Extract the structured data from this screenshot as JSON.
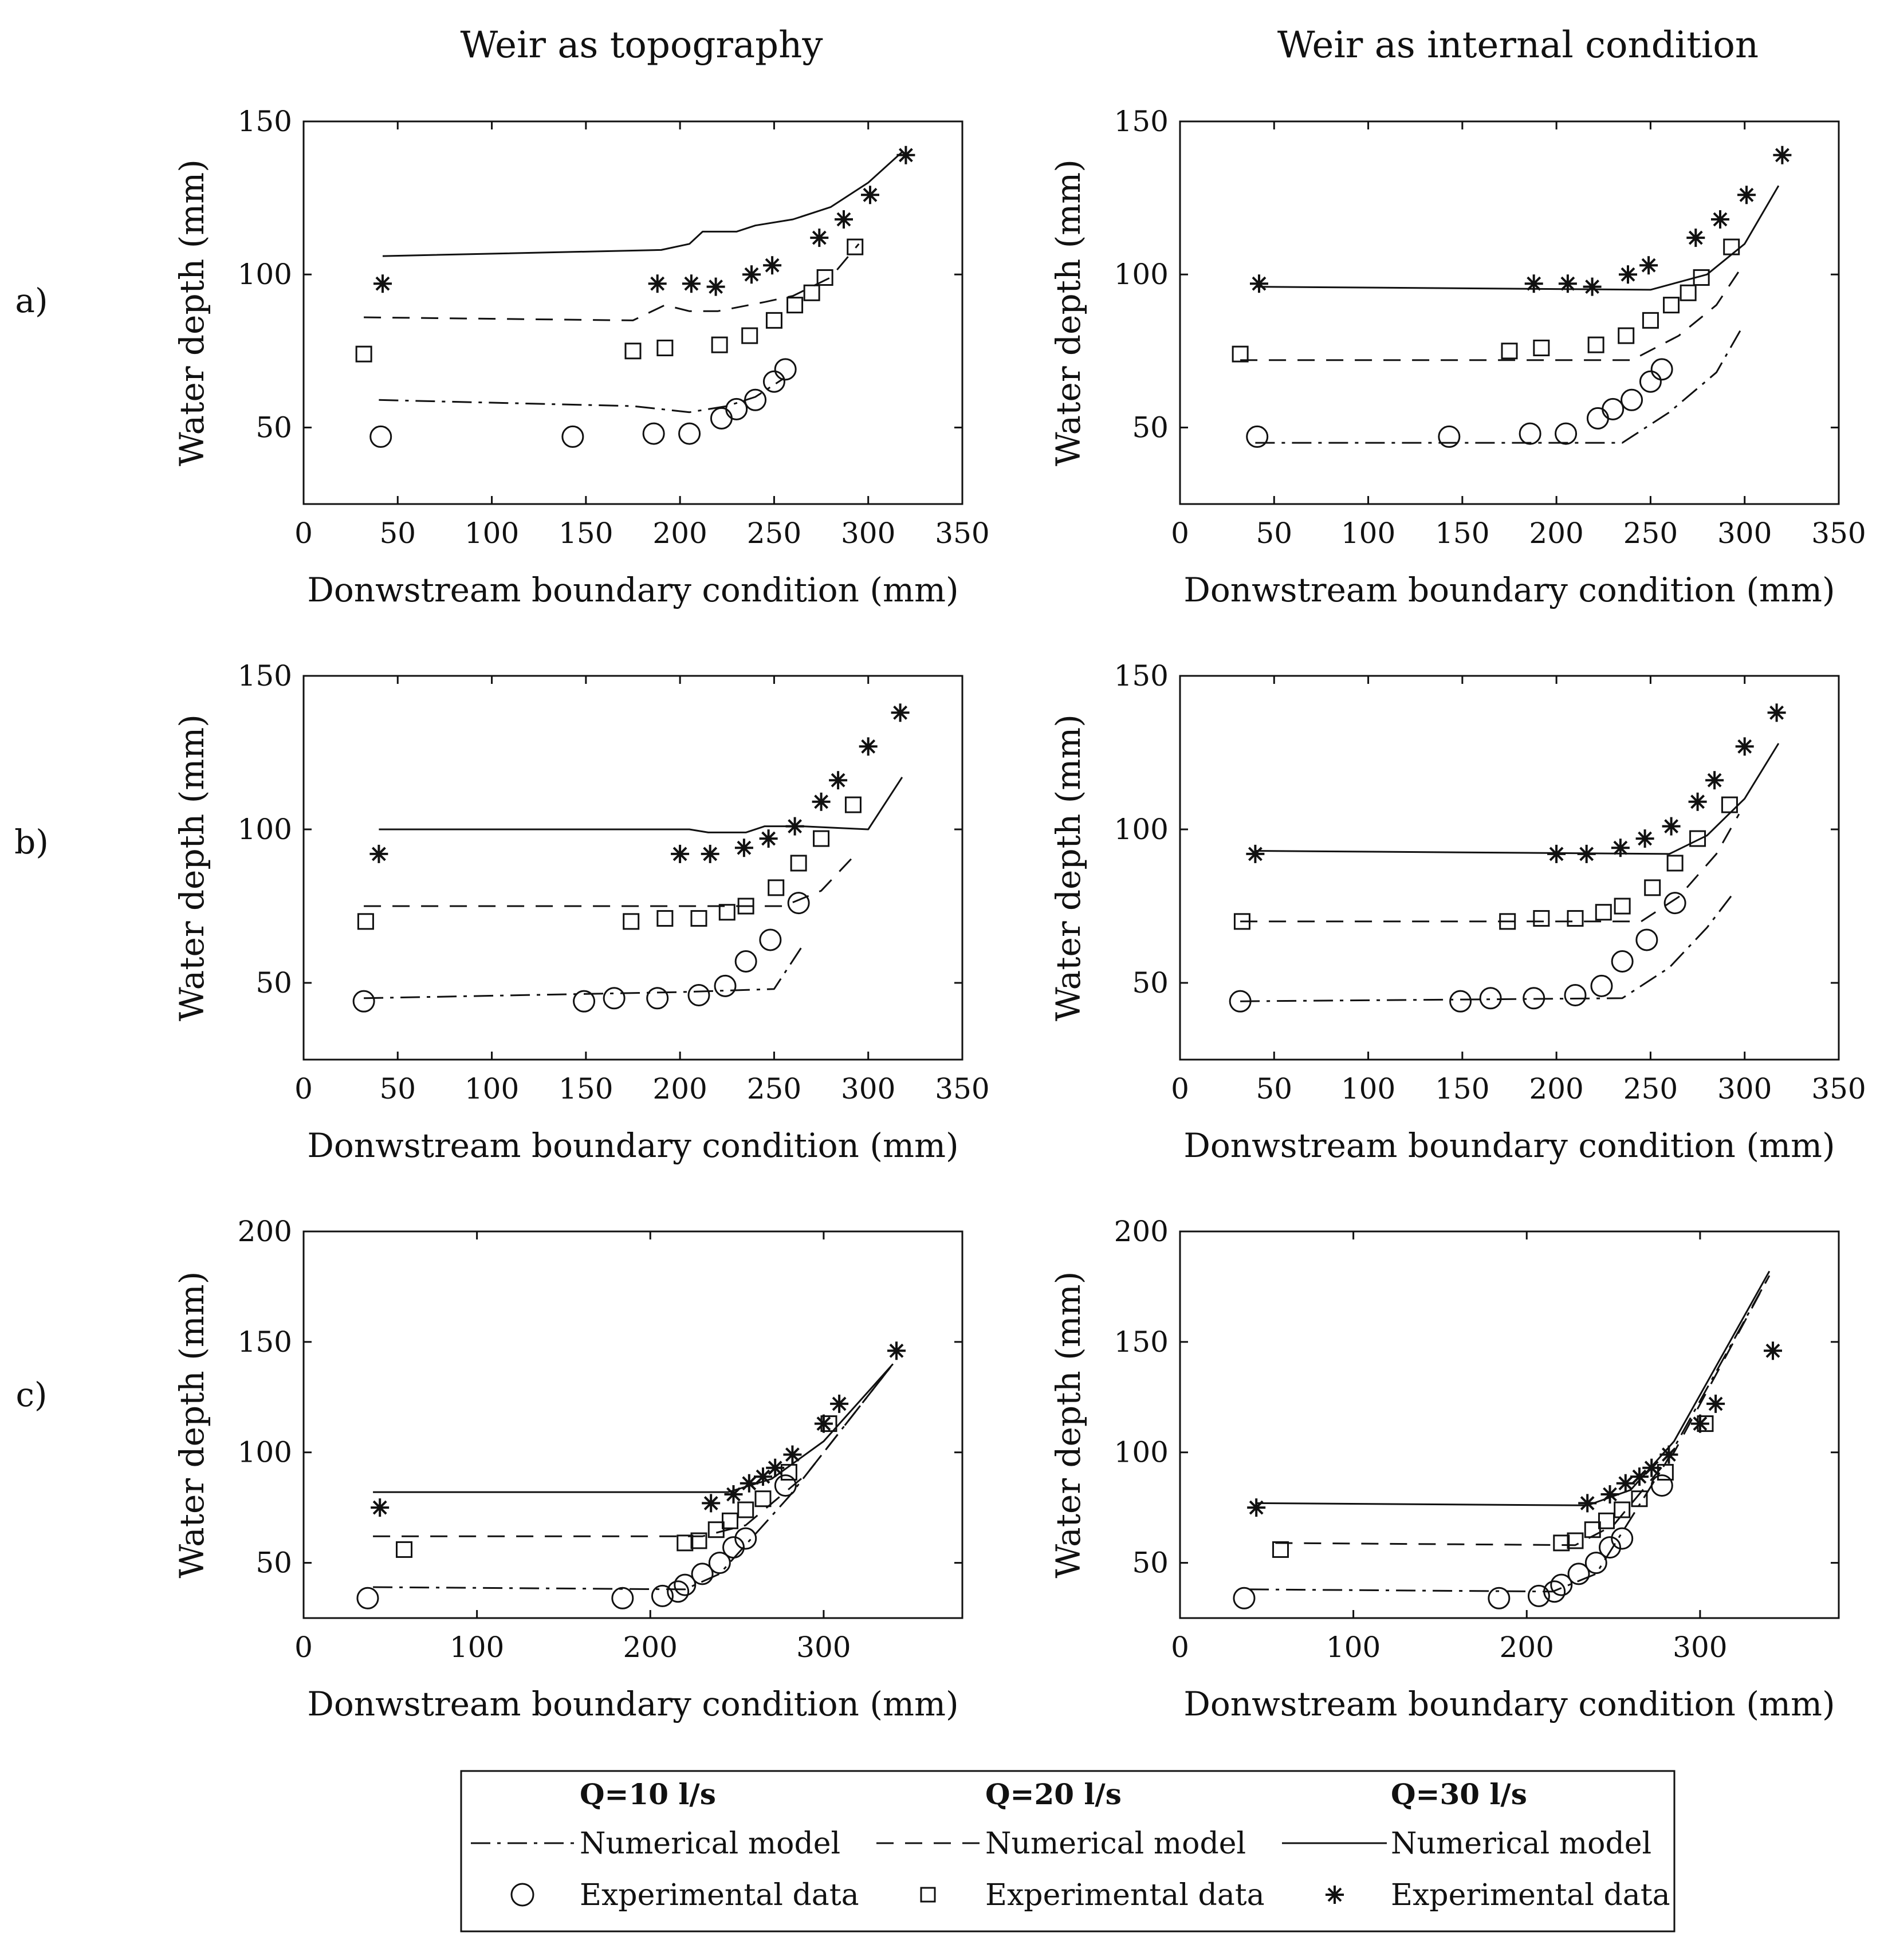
{
  "figure": {
    "column_titles": [
      "Weir as topography",
      "Weir as internal condition"
    ],
    "row_labels": [
      "a)",
      "b)",
      "c)"
    ]
  },
  "legend": {
    "q10_label": "Q=10 l/s",
    "q20_label": "Q=20 l/s",
    "q30_label": "Q=30 l/s",
    "model_label": "Numerical model",
    "data_label": "Experimental data"
  },
  "colors": {
    "ink": "#111111",
    "background": "#ffffff"
  },
  "chart_data": [
    {
      "id": "a-topo",
      "type": "line",
      "row": "a)",
      "column": "Weir as topography",
      "xlabel": "Donwstream boundary condition (mm)",
      "ylabel": "Water depth (mm)",
      "xlim": [
        0,
        350
      ],
      "ylim": [
        25,
        150
      ],
      "xticks": [
        0,
        50,
        100,
        150,
        200,
        250,
        300,
        350
      ],
      "yticks": [
        50,
        100,
        150
      ],
      "series": [
        {
          "name": "Q=10 l/s Numerical model",
          "kind": "line",
          "dash": "dashdot",
          "x": [
            40,
            175,
            205,
            225,
            240,
            255
          ],
          "y": [
            59,
            57,
            55,
            57,
            60,
            66
          ]
        },
        {
          "name": "Q=20 l/s Numerical model",
          "kind": "line",
          "dash": "dashed",
          "x": [
            32,
            175,
            192,
            205,
            220,
            245,
            260,
            280,
            295
          ],
          "y": [
            86,
            85,
            90,
            88,
            88,
            91,
            93,
            99,
            110
          ]
        },
        {
          "name": "Q=30 l/s Numerical model",
          "kind": "line",
          "dash": "solid",
          "x": [
            42,
            190,
            205,
            212,
            230,
            240,
            260,
            280,
            300,
            318
          ],
          "y": [
            106,
            108,
            110,
            114,
            114,
            116,
            118,
            122,
            130,
            140
          ]
        },
        {
          "name": "Q=10 l/s Experimental data",
          "kind": "marker",
          "marker": "circle",
          "x": [
            41,
            143,
            186,
            205,
            222,
            230,
            240,
            250,
            256
          ],
          "y": [
            47,
            47,
            48,
            48,
            53,
            56,
            59,
            65,
            69
          ]
        },
        {
          "name": "Q=20 l/s Experimental data",
          "kind": "marker",
          "marker": "square",
          "x": [
            32,
            175,
            192,
            221,
            237,
            250,
            261,
            270,
            277,
            293
          ],
          "y": [
            74,
            75,
            76,
            77,
            80,
            85,
            90,
            94,
            99,
            109
          ]
        },
        {
          "name": "Q=30 l/s Experimental data",
          "kind": "marker",
          "marker": "star",
          "x": [
            42,
            188,
            206,
            219,
            238,
            249,
            274,
            287,
            301,
            320
          ],
          "y": [
            97,
            97,
            97,
            96,
            100,
            103,
            112,
            118,
            126,
            139
          ]
        }
      ]
    },
    {
      "id": "a-internal",
      "type": "line",
      "row": "a)",
      "column": "Weir as internal condition",
      "xlabel": "Donwstream boundary condition (mm)",
      "ylabel": "Water depth (mm)",
      "xlim": [
        0,
        350
      ],
      "ylim": [
        25,
        150
      ],
      "xticks": [
        0,
        50,
        100,
        150,
        200,
        250,
        300,
        350
      ],
      "yticks": [
        50,
        100,
        150
      ],
      "series": [
        {
          "name": "Q=10 l/s Numerical model",
          "kind": "line",
          "dash": "dashdot",
          "x": [
            40,
            235,
            260,
            285,
            298
          ],
          "y": [
            45,
            45,
            55,
            68,
            82
          ]
        },
        {
          "name": "Q=20 l/s Numerical model",
          "kind": "line",
          "dash": "dashed",
          "x": [
            32,
            240,
            265,
            285,
            298
          ],
          "y": [
            72,
            72,
            80,
            90,
            102
          ]
        },
        {
          "name": "Q=30 l/s Numerical model",
          "kind": "line",
          "dash": "solid",
          "x": [
            40,
            250,
            280,
            300,
            318
          ],
          "y": [
            96,
            95,
            100,
            110,
            129
          ]
        },
        {
          "name": "Q=10 l/s Experimental data",
          "kind": "marker",
          "marker": "circle",
          "x": [
            41,
            143,
            186,
            205,
            222,
            230,
            240,
            250,
            256
          ],
          "y": [
            47,
            47,
            48,
            48,
            53,
            56,
            59,
            65,
            69
          ]
        },
        {
          "name": "Q=20 l/s Experimental data",
          "kind": "marker",
          "marker": "square",
          "x": [
            32,
            175,
            192,
            221,
            237,
            250,
            261,
            270,
            277,
            293
          ],
          "y": [
            74,
            75,
            76,
            77,
            80,
            85,
            90,
            94,
            99,
            109
          ]
        },
        {
          "name": "Q=30 l/s Experimental data",
          "kind": "marker",
          "marker": "star",
          "x": [
            42,
            188,
            206,
            219,
            238,
            249,
            274,
            287,
            301,
            320
          ],
          "y": [
            97,
            97,
            97,
            96,
            100,
            103,
            112,
            118,
            126,
            139
          ]
        }
      ]
    },
    {
      "id": "b-topo",
      "type": "line",
      "row": "b)",
      "column": "Weir as topography",
      "xlabel": "Donwstream boundary condition (mm)",
      "ylabel": "Water depth (mm)",
      "xlim": [
        0,
        350
      ],
      "ylim": [
        25,
        150
      ],
      "xticks": [
        0,
        50,
        100,
        150,
        200,
        250,
        300,
        350
      ],
      "yticks": [
        50,
        100,
        150
      ],
      "series": [
        {
          "name": "Q=10 l/s Numerical model",
          "kind": "line",
          "dash": "dashdot",
          "x": [
            32,
            200,
            250,
            265
          ],
          "y": [
            45,
            47,
            48,
            62
          ]
        },
        {
          "name": "Q=20 l/s Numerical model",
          "kind": "line",
          "dash": "dashed",
          "x": [
            32,
            255,
            275,
            295
          ],
          "y": [
            75,
            75,
            80,
            93
          ]
        },
        {
          "name": "Q=30 l/s Numerical model",
          "kind": "line",
          "dash": "solid",
          "x": [
            40,
            205,
            215,
            235,
            245,
            265,
            300,
            318
          ],
          "y": [
            100,
            100,
            99,
            99,
            101,
            101,
            100,
            117
          ]
        },
        {
          "name": "Q=10 l/s Experimental data",
          "kind": "marker",
          "marker": "circle",
          "x": [
            32,
            149,
            165,
            188,
            210,
            224,
            235,
            248,
            263
          ],
          "y": [
            44,
            44,
            45,
            45,
            46,
            49,
            57,
            64,
            76
          ]
        },
        {
          "name": "Q=20 l/s Experimental data",
          "kind": "marker",
          "marker": "square",
          "x": [
            33,
            174,
            192,
            210,
            225,
            235,
            251,
            263,
            275,
            292
          ],
          "y": [
            70,
            70,
            71,
            71,
            73,
            75,
            81,
            89,
            97,
            108
          ]
        },
        {
          "name": "Q=30 l/s Experimental data",
          "kind": "marker",
          "marker": "star",
          "x": [
            40,
            200,
            216,
            234,
            247,
            261,
            275,
            284,
            300,
            317
          ],
          "y": [
            92,
            92,
            92,
            94,
            97,
            101,
            109,
            116,
            127,
            138
          ]
        }
      ]
    },
    {
      "id": "b-internal",
      "type": "line",
      "row": "b)",
      "column": "Weir as internal condition",
      "xlabel": "Donwstream boundary condition (mm)",
      "ylabel": "Water depth (mm)",
      "xlim": [
        0,
        350
      ],
      "ylim": [
        25,
        150
      ],
      "xticks": [
        0,
        50,
        100,
        150,
        200,
        250,
        300,
        350
      ],
      "yticks": [
        50,
        100,
        150
      ],
      "series": [
        {
          "name": "Q=10 l/s Numerical model",
          "kind": "line",
          "dash": "dashdot",
          "x": [
            32,
            235,
            260,
            280,
            295
          ],
          "y": [
            44,
            45,
            55,
            68,
            80
          ]
        },
        {
          "name": "Q=20 l/s Numerical model",
          "kind": "line",
          "dash": "dashed",
          "x": [
            32,
            245,
            265,
            285,
            297
          ],
          "y": [
            70,
            70,
            78,
            92,
            105
          ]
        },
        {
          "name": "Q=30 l/s Numerical model",
          "kind": "line",
          "dash": "solid",
          "x": [
            40,
            260,
            280,
            300,
            318
          ],
          "y": [
            93,
            92,
            98,
            110,
            128
          ]
        },
        {
          "name": "Q=10 l/s Experimental data",
          "kind": "marker",
          "marker": "circle",
          "x": [
            32,
            149,
            165,
            188,
            210,
            224,
            235,
            248,
            263
          ],
          "y": [
            44,
            44,
            45,
            45,
            46,
            49,
            57,
            64,
            76
          ]
        },
        {
          "name": "Q=20 l/s Experimental data",
          "kind": "marker",
          "marker": "square",
          "x": [
            33,
            174,
            192,
            210,
            225,
            235,
            251,
            263,
            275,
            292
          ],
          "y": [
            70,
            70,
            71,
            71,
            73,
            75,
            81,
            89,
            97,
            108
          ]
        },
        {
          "name": "Q=30 l/s Experimental data",
          "kind": "marker",
          "marker": "star",
          "x": [
            40,
            200,
            216,
            234,
            247,
            261,
            275,
            284,
            300,
            317
          ],
          "y": [
            92,
            92,
            92,
            94,
            97,
            101,
            109,
            116,
            127,
            138
          ]
        }
      ]
    },
    {
      "id": "c-topo",
      "type": "line",
      "row": "c)",
      "column": "Weir as topography",
      "xlabel": "Donwstream boundary condition (mm)",
      "ylabel": "Water depth (mm)",
      "xlim": [
        0,
        380
      ],
      "ylim": [
        25,
        200
      ],
      "xticks": [
        0,
        100,
        200,
        300
      ],
      "yticks": [
        50,
        100,
        150,
        200
      ],
      "series": [
        {
          "name": "Q=10 l/s Numerical model",
          "kind": "line",
          "dash": "dashdot",
          "x": [
            40,
            220,
            240,
            280,
            340
          ],
          "y": [
            39,
            38,
            45,
            80,
            140
          ]
        },
        {
          "name": "Q=20 l/s Numerical model",
          "kind": "line",
          "dash": "dashed",
          "x": [
            40,
            230,
            255,
            290,
            340
          ],
          "y": [
            62,
            62,
            67,
            90,
            140
          ]
        },
        {
          "name": "Q=30 l/s Numerical model",
          "kind": "line",
          "dash": "solid",
          "x": [
            40,
            245,
            270,
            300,
            340
          ],
          "y": [
            82,
            82,
            88,
            105,
            140
          ]
        },
        {
          "name": "Q=10 l/s Experimental data",
          "kind": "marker",
          "marker": "circle",
          "x": [
            37,
            184,
            207,
            216,
            220,
            230,
            240,
            248,
            255,
            278
          ],
          "y": [
            34,
            34,
            35,
            37,
            40,
            45,
            50,
            57,
            61,
            85
          ]
        },
        {
          "name": "Q=20 l/s Experimental data",
          "kind": "marker",
          "marker": "square",
          "x": [
            58,
            220,
            228,
            238,
            246,
            255,
            265,
            280,
            303
          ],
          "y": [
            56,
            59,
            60,
            65,
            69,
            74,
            79,
            91,
            113
          ]
        },
        {
          "name": "Q=30 l/s Experimental data",
          "kind": "marker",
          "marker": "star",
          "x": [
            44,
            235,
            248,
            257,
            265,
            272,
            282,
            300,
            309,
            342
          ],
          "y": [
            75,
            77,
            81,
            86,
            89,
            93,
            99,
            113,
            122,
            146
          ]
        }
      ]
    },
    {
      "id": "c-internal",
      "type": "line",
      "row": "c)",
      "column": "Weir as internal condition",
      "xlabel": "Donwstream boundary condition (mm)",
      "ylabel": "Water depth (mm)",
      "xlim": [
        0,
        380
      ],
      "ylim": [
        25,
        200
      ],
      "xticks": [
        0,
        100,
        200,
        300
      ],
      "yticks": [
        50,
        100,
        150,
        200
      ],
      "series": [
        {
          "name": "Q=10 l/s Numerical model",
          "kind": "line",
          "dash": "dashdot",
          "x": [
            40,
            215,
            240,
            280,
            340
          ],
          "y": [
            38,
            37,
            45,
            95,
            180
          ]
        },
        {
          "name": "Q=20 l/s Numerical model",
          "kind": "line",
          "dash": "dashed",
          "x": [
            55,
            228,
            250,
            285,
            340
          ],
          "y": [
            59,
            58,
            67,
            100,
            180
          ]
        },
        {
          "name": "Q=30 l/s Numerical model",
          "kind": "line",
          "dash": "solid",
          "x": [
            44,
            235,
            260,
            285,
            340
          ],
          "y": [
            77,
            76,
            83,
            105,
            182
          ]
        },
        {
          "name": "Q=10 l/s Experimental data",
          "kind": "marker",
          "marker": "circle",
          "x": [
            37,
            184,
            207,
            216,
            220,
            230,
            240,
            248,
            255,
            278
          ],
          "y": [
            34,
            34,
            35,
            37,
            40,
            45,
            50,
            57,
            61,
            85
          ]
        },
        {
          "name": "Q=20 l/s Experimental data",
          "kind": "marker",
          "marker": "square",
          "x": [
            58,
            220,
            228,
            238,
            246,
            255,
            265,
            280,
            303
          ],
          "y": [
            56,
            59,
            60,
            65,
            69,
            74,
            79,
            91,
            113
          ]
        },
        {
          "name": "Q=30 l/s Experimental data",
          "kind": "marker",
          "marker": "star",
          "x": [
            44,
            235,
            248,
            257,
            265,
            272,
            282,
            300,
            309,
            342
          ],
          "y": [
            75,
            77,
            81,
            86,
            89,
            93,
            99,
            113,
            122,
            146
          ]
        }
      ]
    }
  ]
}
